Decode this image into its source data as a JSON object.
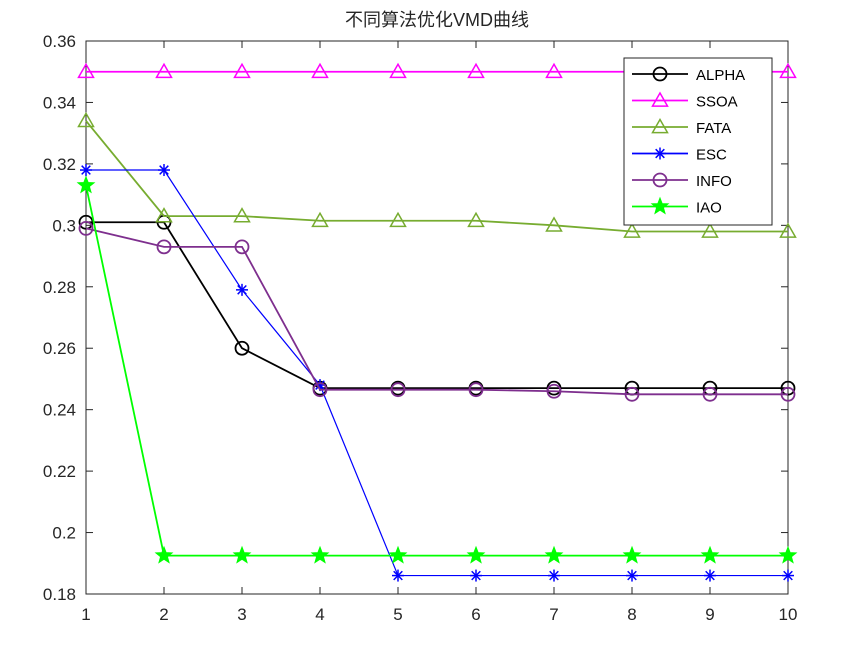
{
  "chart_data": {
    "type": "line",
    "title": "不同算法优化VMD曲线",
    "xlabel": "",
    "ylabel": "",
    "x": [
      1,
      2,
      3,
      4,
      5,
      6,
      7,
      8,
      9,
      10
    ],
    "xlim": [
      1,
      10
    ],
    "ylim": [
      0.18,
      0.36
    ],
    "xticks": [
      "1",
      "2",
      "3",
      "4",
      "5",
      "6",
      "7",
      "8",
      "9",
      "10"
    ],
    "yticks": [
      "0.18",
      "0.2",
      "0.22",
      "0.24",
      "0.26",
      "0.28",
      "0.3",
      "0.32",
      "0.34",
      "0.36"
    ],
    "grid": false,
    "legend_position": "top-right",
    "series": [
      {
        "name": "ALPHA",
        "color": "#000000",
        "marker": "circle",
        "values": [
          0.301,
          0.301,
          0.26,
          0.247,
          0.247,
          0.247,
          0.247,
          0.247,
          0.247,
          0.247
        ]
      },
      {
        "name": "SSOA",
        "color": "#ff00ff",
        "marker": "triangle",
        "values": [
          0.35,
          0.35,
          0.35,
          0.35,
          0.35,
          0.35,
          0.35,
          0.35,
          0.35,
          0.35
        ]
      },
      {
        "name": "FATA",
        "color": "#77ac30",
        "marker": "triangle",
        "values": [
          0.334,
          0.303,
          0.303,
          0.3015,
          0.3015,
          0.3015,
          0.3,
          0.298,
          0.298,
          0.298
        ]
      },
      {
        "name": "ESC",
        "color": "#0000ff",
        "marker": "asterisk",
        "values": [
          0.318,
          0.318,
          0.279,
          0.248,
          0.186,
          0.186,
          0.186,
          0.186,
          0.186,
          0.186
        ]
      },
      {
        "name": "INFO",
        "color": "#7e2f8e",
        "marker": "circle",
        "values": [
          0.299,
          0.293,
          0.293,
          0.2465,
          0.2465,
          0.2465,
          0.246,
          0.245,
          0.245,
          0.245
        ]
      },
      {
        "name": "IAO",
        "color": "#00ff00",
        "marker": "star",
        "values": [
          0.313,
          0.1925,
          0.1925,
          0.1925,
          0.1925,
          0.1925,
          0.1925,
          0.1925,
          0.1925,
          0.1925
        ]
      }
    ]
  }
}
